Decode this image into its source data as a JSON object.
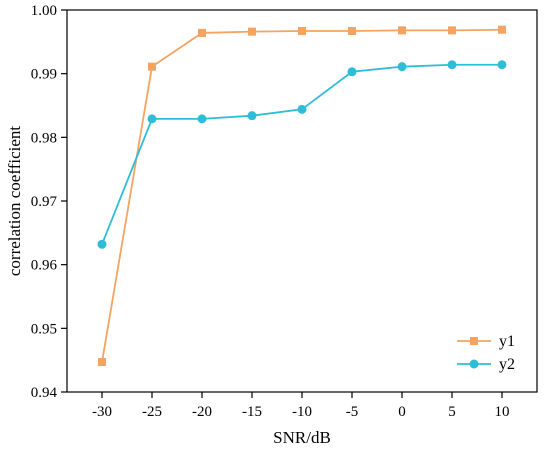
{
  "chart_data": {
    "type": "line",
    "x": [
      -30,
      -25,
      -20,
      -15,
      -10,
      -5,
      0,
      5,
      10
    ],
    "x_tick_labels": [
      "-30",
      "-25",
      "-20",
      "-15",
      "-10",
      "-5",
      "0",
      "5",
      "10"
    ],
    "y_tick_labels": [
      "0.94",
      "0.95",
      "0.96",
      "0.97",
      "0.98",
      "0.99",
      "1.00"
    ],
    "y_ticks": [
      0.94,
      0.95,
      0.96,
      0.97,
      0.98,
      0.99,
      1.0
    ],
    "xlabel": "SNR/dB",
    "ylabel": "correlation coefficient",
    "xlim": [
      -33.5,
      13.5
    ],
    "ylim": [
      0.94,
      1.0
    ],
    "grid": false,
    "legend_position": "bottom-right",
    "series": [
      {
        "name": "y1",
        "marker": "square",
        "color": "#F4A460",
        "values": [
          0.9447,
          0.9911,
          0.9964,
          0.9966,
          0.9967,
          0.9967,
          0.9968,
          0.9968,
          0.9969
        ]
      },
      {
        "name": "y2",
        "marker": "circle",
        "color": "#2EBDD6",
        "values": [
          0.9632,
          0.9829,
          0.9829,
          0.9834,
          0.9844,
          0.9903,
          0.9911,
          0.9914,
          0.9914
        ]
      }
    ]
  }
}
